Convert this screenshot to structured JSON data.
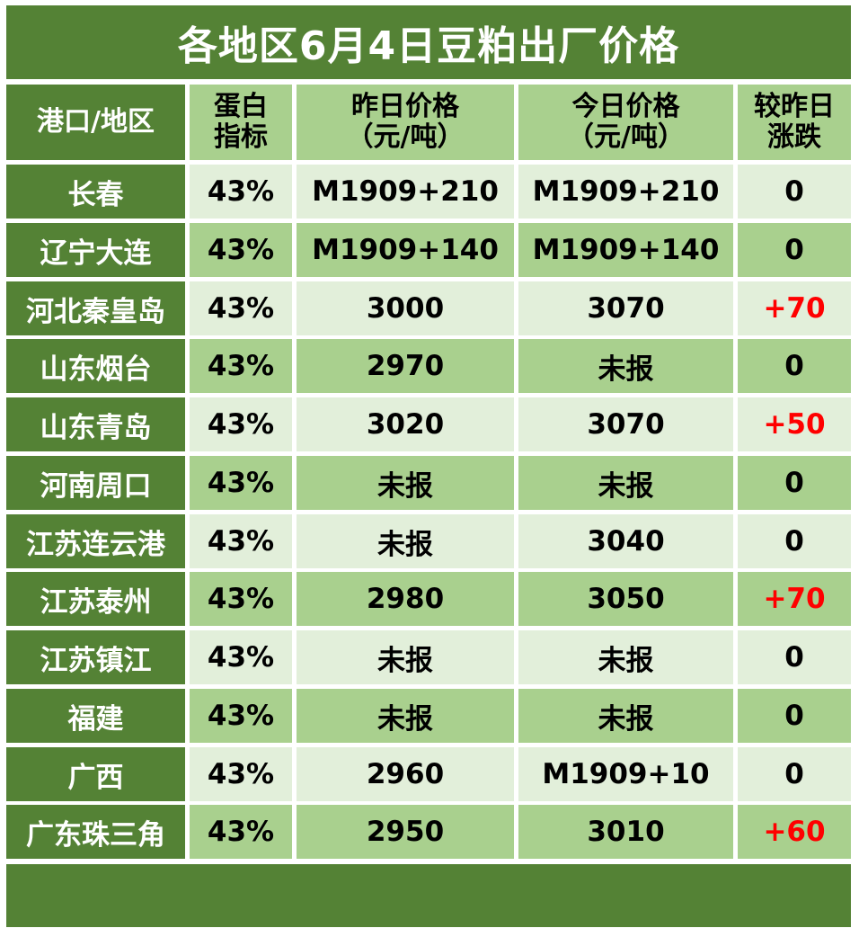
{
  "title": "各地区6月4日豆粕出厂价格",
  "headers": {
    "region": "港口/地区",
    "protein_line1": "蛋白",
    "protein_line2": "指标",
    "yesterday_line1": "昨日价格",
    "yesterday_line2": "（元/吨）",
    "today_line1": "今日价格",
    "today_line2": "（元/吨）",
    "change_line1": "较昨日",
    "change_line2": "涨跌"
  },
  "rows": [
    {
      "region": "长春",
      "protein": "43%",
      "yesterday": "M1909+210",
      "today": "M1909+210",
      "change": "0"
    },
    {
      "region": "辽宁大连",
      "protein": "43%",
      "yesterday": "M1909+140",
      "today": "M1909+140",
      "change": "0"
    },
    {
      "region": "河北秦皇岛",
      "protein": "43%",
      "yesterday": "3000",
      "today": "3070",
      "change": "+70"
    },
    {
      "region": "山东烟台",
      "protein": "43%",
      "yesterday": "2970",
      "today": "未报",
      "change": "0"
    },
    {
      "region": "山东青岛",
      "protein": "43%",
      "yesterday": "3020",
      "today": "3070",
      "change": "+50"
    },
    {
      "region": "河南周口",
      "protein": "43%",
      "yesterday": "未报",
      "today": "未报",
      "change": "0"
    },
    {
      "region": "江苏连云港",
      "protein": "43%",
      "yesterday": "未报",
      "today": "3040",
      "change": "0"
    },
    {
      "region": "江苏泰州",
      "protein": "43%",
      "yesterday": "2980",
      "today": "3050",
      "change": "+70"
    },
    {
      "region": "江苏镇江",
      "protein": "43%",
      "yesterday": "未报",
      "today": "未报",
      "change": "0"
    },
    {
      "region": "福建",
      "protein": "43%",
      "yesterday": "未报",
      "today": "未报",
      "change": "0"
    },
    {
      "region": "广西",
      "protein": "43%",
      "yesterday": "2960",
      "today": "M1909+10",
      "change": "0"
    },
    {
      "region": "广东珠三角",
      "protein": "43%",
      "yesterday": "2950",
      "today": "3010",
      "change": "+60"
    }
  ],
  "colors": {
    "dark_green": "#548235",
    "mid_green": "#a9d08e",
    "light_green": "#e2efda",
    "increase_red": "#ff0000"
  }
}
